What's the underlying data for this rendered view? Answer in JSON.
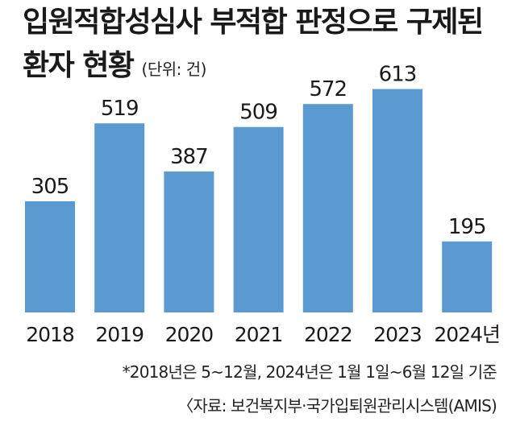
{
  "header": {
    "title_line1": "입원적합성심사 부적합 판정으로 구제된",
    "title_line2": "환자 현황",
    "unit": "(단위: 건)"
  },
  "chart_data": {
    "type": "bar",
    "categories": [
      "2018",
      "2019",
      "2020",
      "2021",
      "2022",
      "2023",
      "2024년"
    ],
    "values": [
      305,
      519,
      387,
      509,
      572,
      613,
      195
    ],
    "ylim": [
      0,
      650
    ],
    "grid": false,
    "legend": "none",
    "bar_color": "#5b9ad0"
  },
  "footer": {
    "note": "*2018년은 5~12월, 2024년은 1월 1일~6월 12일 기준",
    "source": "〈자료: 보건복지부·국가입퇴원관리시스템(AMIS)"
  }
}
